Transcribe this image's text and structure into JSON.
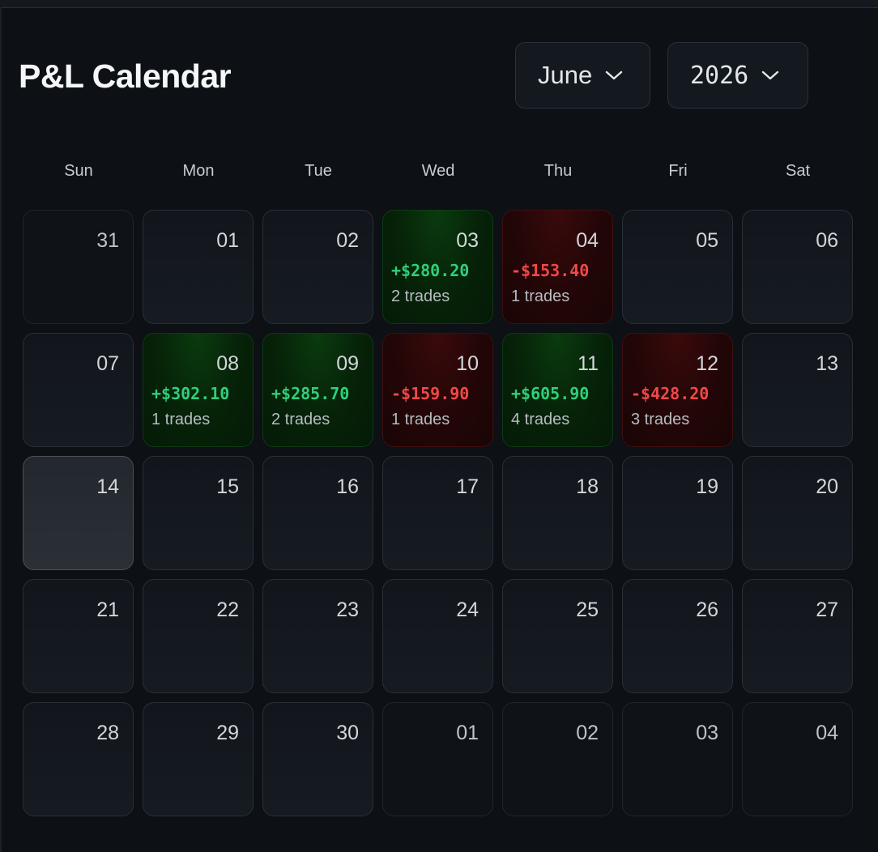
{
  "header": {
    "title": "P&L Calendar",
    "month_select": {
      "value": "June",
      "icon": "chevron-down-icon"
    },
    "year_select": {
      "value": "2026",
      "icon": "chevron-down-icon"
    }
  },
  "weekdays": [
    "Sun",
    "Mon",
    "Tue",
    "Wed",
    "Thu",
    "Fri",
    "Sat"
  ],
  "colors": {
    "profit": "#2fcf7b",
    "loss": "#f04848",
    "background": "#0d1015"
  },
  "days": [
    {
      "day": "31",
      "type": "other"
    },
    {
      "day": "01",
      "type": "current"
    },
    {
      "day": "02",
      "type": "current"
    },
    {
      "day": "03",
      "type": "current",
      "pnl": "+$280.20",
      "trades": "2 trades",
      "result": "win"
    },
    {
      "day": "04",
      "type": "current",
      "pnl": "-$153.40",
      "trades": "1 trades",
      "result": "loss"
    },
    {
      "day": "05",
      "type": "current"
    },
    {
      "day": "06",
      "type": "current"
    },
    {
      "day": "07",
      "type": "current"
    },
    {
      "day": "08",
      "type": "current",
      "pnl": "+$302.10",
      "trades": "1 trades",
      "result": "win"
    },
    {
      "day": "09",
      "type": "current",
      "pnl": "+$285.70",
      "trades": "2 trades",
      "result": "win"
    },
    {
      "day": "10",
      "type": "current",
      "pnl": "-$159.90",
      "trades": "1 trades",
      "result": "loss"
    },
    {
      "day": "11",
      "type": "current",
      "pnl": "+$605.90",
      "trades": "4 trades",
      "result": "win"
    },
    {
      "day": "12",
      "type": "current",
      "pnl": "-$428.20",
      "trades": "3 trades",
      "result": "loss"
    },
    {
      "day": "13",
      "type": "current"
    },
    {
      "day": "14",
      "type": "today"
    },
    {
      "day": "15",
      "type": "current"
    },
    {
      "day": "16",
      "type": "current"
    },
    {
      "day": "17",
      "type": "current"
    },
    {
      "day": "18",
      "type": "current"
    },
    {
      "day": "19",
      "type": "current"
    },
    {
      "day": "20",
      "type": "current"
    },
    {
      "day": "21",
      "type": "current"
    },
    {
      "day": "22",
      "type": "current"
    },
    {
      "day": "23",
      "type": "current"
    },
    {
      "day": "24",
      "type": "current"
    },
    {
      "day": "25",
      "type": "current"
    },
    {
      "day": "26",
      "type": "current"
    },
    {
      "day": "27",
      "type": "current"
    },
    {
      "day": "28",
      "type": "current"
    },
    {
      "day": "29",
      "type": "current"
    },
    {
      "day": "30",
      "type": "current"
    },
    {
      "day": "01",
      "type": "other"
    },
    {
      "day": "02",
      "type": "other"
    },
    {
      "day": "03",
      "type": "other"
    },
    {
      "day": "04",
      "type": "other"
    }
  ]
}
